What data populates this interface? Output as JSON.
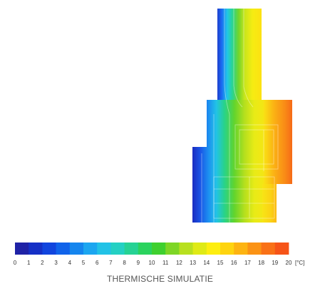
{
  "chart_data": {
    "type": "heatmap",
    "title": "THERMISCHE SIMULATIE",
    "unit": "[°C]",
    "scale_min": 0,
    "scale_max": 20,
    "tick_labels": [
      "0",
      "1",
      "2",
      "3",
      "4",
      "5",
      "6",
      "7",
      "8",
      "9",
      "10",
      "11",
      "12",
      "13",
      "14",
      "15",
      "16",
      "17",
      "18",
      "19",
      "20"
    ],
    "colorbar_colors": [
      "#1f22a6",
      "#1530c6",
      "#1145de",
      "#1063ea",
      "#1585ee",
      "#1ca6f0",
      "#22c2e6",
      "#24d0c3",
      "#26d294",
      "#2bd35e",
      "#3fd02f",
      "#7ed626",
      "#b8e01f",
      "#dfea16",
      "#fdee10",
      "#fed40f",
      "#fdb412",
      "#fb9315",
      "#f97117",
      "#f65418"
    ],
    "legend_placement": "bottom"
  }
}
